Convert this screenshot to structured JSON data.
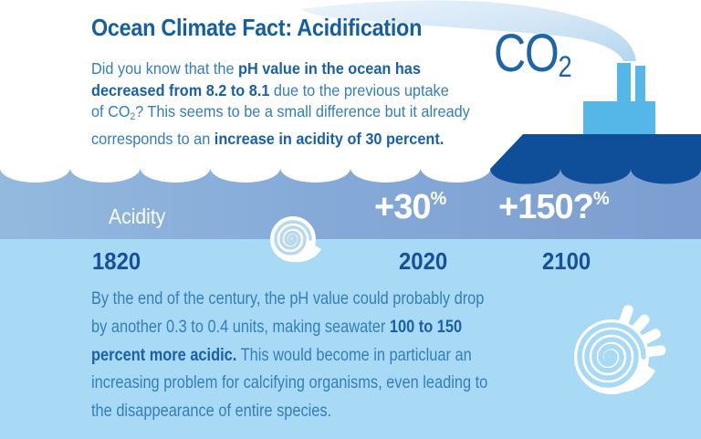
{
  "infographic": {
    "title": "Ocean Climate Fact: Acidification",
    "co2_label": {
      "main": "CO",
      "sub": "2"
    },
    "intro_lines": [
      [
        {
          "t": "Did you know that the "
        },
        {
          "t": "pH value in the ocean has",
          "b": true
        }
      ],
      [
        {
          "t": "decreased from 8.2 to 8.1",
          "b": true
        },
        {
          "t": " due to the previous uptake"
        }
      ],
      [
        {
          "t": "of CO"
        },
        {
          "t": "2",
          "sub": true
        },
        {
          "t": "? This seems to be a small difference but it already"
        }
      ],
      [
        {
          "t": "corresponds to an "
        },
        {
          "t": "increase in acidity of 30 percent.",
          "b": true
        }
      ]
    ],
    "acidity_label": "Acidity",
    "stats": [
      {
        "value": "+30",
        "unit": "%"
      },
      {
        "value": "+150?",
        "unit": "%"
      }
    ],
    "years": [
      "1820",
      "2020",
      "2100"
    ],
    "outro_lines": [
      [
        {
          "t": "By the end of the century, the pH value could probably drop"
        }
      ],
      [
        {
          "t": "by another 0.3 to 0.4 units, making seawater "
        },
        {
          "t": "100 to 150",
          "b": true
        }
      ],
      [
        {
          "t": "percent more acidic.",
          "b": true
        },
        {
          "t": " This would become in particluar an"
        }
      ],
      [
        {
          "t": "increasing problem for calcifying organisms, even leading to"
        }
      ],
      [
        {
          "t": "the disappearance of entire species."
        }
      ]
    ],
    "icons": [
      "co2-smoke-swoosh-icon",
      "steamship-icon",
      "wave-border-icon",
      "ammonite-shell-small-icon",
      "ammonite-shell-large-icon"
    ],
    "colors": {
      "title": "#145fa3",
      "body": "#337dbb",
      "bold": "#1960a6",
      "co2": "#1d64a8",
      "navy": "#0f4f99",
      "shiplight": "#55b7e8",
      "band1l": "#93bade",
      "band1r": "#7c9ed0",
      "band2": "#a9daf5",
      "year": "#15509c",
      "white": "#ffffff",
      "groove": "#b9d8ee"
    }
  }
}
